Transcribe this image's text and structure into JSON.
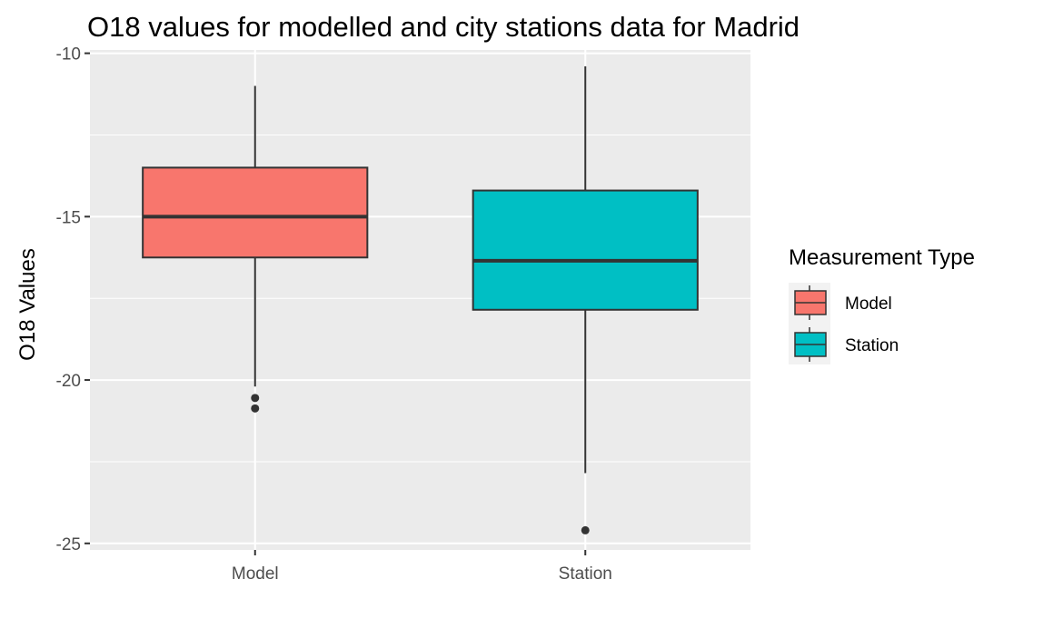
{
  "chart_data": {
    "type": "box",
    "title": "O18 values for modelled and city stations data for Madrid",
    "xlabel": "",
    "ylabel": "O18 Values",
    "categories": [
      "Model",
      "Station"
    ],
    "ylim": [
      -25.2,
      -9.9
    ],
    "yticks": [
      -10,
      -15,
      -20,
      -25
    ],
    "grid": true,
    "legend": {
      "title": "Measurement Type",
      "placement": "right",
      "entries": [
        "Model",
        "Station"
      ]
    },
    "series": [
      {
        "name": "Model",
        "color": "#F8766D",
        "whisker_low": -20.2,
        "q1": -16.25,
        "median": -15.0,
        "q3": -13.5,
        "whisker_high": -11.0,
        "outliers": [
          -20.55,
          -20.87
        ]
      },
      {
        "name": "Station",
        "color": "#00BFC4",
        "whisker_low": -22.85,
        "q1": -17.85,
        "median": -16.35,
        "q3": -14.2,
        "whisker_high": -10.4,
        "outliers": [
          -24.6
        ]
      }
    ]
  }
}
